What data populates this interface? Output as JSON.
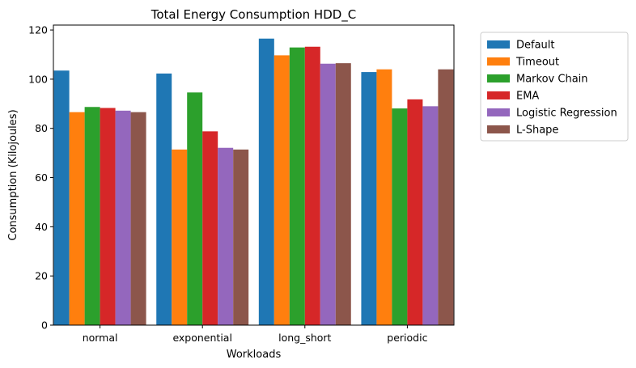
{
  "chart_data": {
    "type": "bar",
    "title": "Total Energy Consumption HDD_C",
    "xlabel": "Workloads",
    "ylabel": "Consumption (Kilojoules)",
    "ylim": [
      0,
      122
    ],
    "yticks": [
      0,
      20,
      40,
      60,
      80,
      100,
      120
    ],
    "grid": false,
    "legend_position": "outside-top-right",
    "categories": [
      "normal",
      "exponential",
      "long_short",
      "periodic"
    ],
    "series": [
      {
        "name": "Default",
        "color": "#1f77b4",
        "values": [
          103.5,
          102.3,
          116.5,
          102.9
        ]
      },
      {
        "name": "Timeout",
        "color": "#ff7f0e",
        "values": [
          86.6,
          71.4,
          109.7,
          104.0
        ]
      },
      {
        "name": "Markov Chain",
        "color": "#2ca02c",
        "values": [
          88.7,
          94.6,
          112.9,
          88.1
        ]
      },
      {
        "name": "EMA",
        "color": "#d62728",
        "values": [
          88.3,
          78.8,
          113.2,
          91.8
        ]
      },
      {
        "name": "Logistic Regression",
        "color": "#9467bd",
        "values": [
          87.2,
          72.1,
          106.3,
          89.0
        ]
      },
      {
        "name": "L-Shape",
        "color": "#8c564b",
        "values": [
          86.6,
          71.4,
          106.5,
          104.0
        ]
      }
    ]
  }
}
